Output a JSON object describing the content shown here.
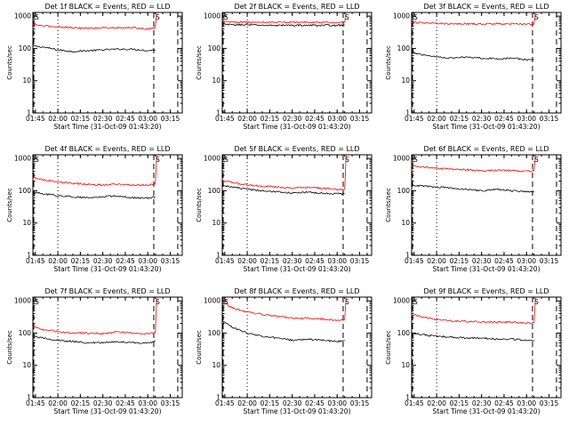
{
  "chart_data": [
    {
      "type": "line",
      "title": "Det 1f BLACK = Events, RED = LLD",
      "xlabel": "Start Time (31-Oct-09 01:43:20)",
      "ylabel": "Counts/sec",
      "x_ticks": [
        "01:45",
        "02:00",
        "02:15",
        "02:30",
        "02:45",
        "03:00",
        "03:15"
      ],
      "y_ticks": [
        "1",
        "10",
        "100",
        "1000"
      ],
      "y_scale": "log",
      "ylim": [
        1,
        1300
      ],
      "series": [
        {
          "color": "#000000",
          "x": [
            "01:43",
            "01:50",
            "02:00",
            "02:10",
            "02:20",
            "02:30",
            "02:40",
            "02:50",
            "03:00",
            "03:05"
          ],
          "values": [
            120,
            110,
            90,
            80,
            85,
            90,
            95,
            95,
            85,
            90
          ]
        },
        {
          "color": "#ff0000",
          "x": [
            "01:43",
            "01:50",
            "02:00",
            "02:10",
            "02:20",
            "02:30",
            "02:40",
            "02:50",
            "03:00",
            "03:05",
            "03:06"
          ],
          "values": [
            560,
            500,
            470,
            440,
            420,
            440,
            430,
            440,
            400,
            450,
            1300
          ]
        }
      ]
    },
    {
      "type": "line",
      "title": "Det 2f BLACK = Events, RED = LLD",
      "xlabel": "Start Time (31-Oct-09 01:43:20)",
      "ylabel": "Counts/sec",
      "x_ticks": [
        "01:45",
        "02:00",
        "02:15",
        "02:30",
        "02:45",
        "03:00",
        "03:15"
      ],
      "y_ticks": [
        "1",
        "10",
        "100",
        "1000"
      ],
      "y_scale": "log",
      "ylim": [
        1,
        1300
      ],
      "series": [
        {
          "color": "#000000",
          "x": [
            "01:43",
            "01:50",
            "02:00",
            "02:10",
            "02:20",
            "02:30",
            "02:40",
            "02:50",
            "03:00",
            "03:05"
          ],
          "values": [
            560,
            540,
            540,
            520,
            520,
            520,
            520,
            520,
            520,
            520
          ]
        },
        {
          "color": "#ff0000",
          "x": [
            "01:43",
            "01:50",
            "02:00",
            "02:10",
            "02:20",
            "02:30",
            "02:40",
            "02:50",
            "03:00",
            "03:05",
            "03:06"
          ],
          "values": [
            680,
            660,
            650,
            640,
            650,
            640,
            650,
            640,
            640,
            650,
            1300
          ]
        }
      ]
    },
    {
      "type": "line",
      "title": "Det 3f BLACK = Events, RED = LLD",
      "xlabel": "Start Time (31-Oct-09 01:43:20)",
      "ylabel": "Counts/sec",
      "x_ticks": [
        "01:45",
        "02:00",
        "02:15",
        "02:30",
        "02:45",
        "03:00",
        "03:15"
      ],
      "y_ticks": [
        "1",
        "10",
        "100",
        "1000"
      ],
      "y_scale": "log",
      "ylim": [
        1,
        1300
      ],
      "series": [
        {
          "color": "#000000",
          "x": [
            "01:43",
            "01:50",
            "02:00",
            "02:10",
            "02:20",
            "02:30",
            "02:40",
            "02:50",
            "03:00",
            "03:05"
          ],
          "values": [
            75,
            65,
            55,
            50,
            55,
            50,
            48,
            50,
            45,
            45
          ]
        },
        {
          "color": "#ff0000",
          "x": [
            "01:43",
            "01:50",
            "02:00",
            "02:10",
            "02:20",
            "02:30",
            "02:40",
            "02:50",
            "03:00",
            "03:05",
            "03:06"
          ],
          "values": [
            650,
            620,
            600,
            580,
            580,
            570,
            580,
            580,
            560,
            570,
            1300
          ]
        }
      ]
    },
    {
      "type": "line",
      "title": "Det 4f BLACK = Events, RED = LLD",
      "xlabel": "Start Time (31-Oct-09 01:43:20)",
      "ylabel": "Counts/sec",
      "x_ticks": [
        "01:45",
        "02:00",
        "02:15",
        "02:30",
        "02:45",
        "03:00",
        "03:15"
      ],
      "y_ticks": [
        "1",
        "10",
        "100",
        "1000"
      ],
      "y_scale": "log",
      "ylim": [
        1,
        1300
      ],
      "series": [
        {
          "color": "#000000",
          "x": [
            "01:43",
            "01:50",
            "02:00",
            "02:10",
            "02:20",
            "02:30",
            "02:40",
            "02:50",
            "03:00",
            "03:05"
          ],
          "values": [
            90,
            80,
            70,
            65,
            60,
            65,
            70,
            60,
            60,
            65
          ]
        },
        {
          "color": "#ff0000",
          "x": [
            "01:43",
            "01:50",
            "02:00",
            "02:10",
            "02:20",
            "02:30",
            "02:40",
            "02:50",
            "03:00",
            "03:05",
            "03:06"
          ],
          "values": [
            260,
            220,
            190,
            170,
            160,
            150,
            160,
            150,
            150,
            160,
            1300
          ]
        }
      ]
    },
    {
      "type": "line",
      "title": "Det 5f BLACK = Events, RED = LLD",
      "xlabel": "Start Time (31-Oct-09 01:43:20)",
      "ylabel": "Counts/sec",
      "x_ticks": [
        "01:45",
        "02:00",
        "02:15",
        "02:30",
        "02:45",
        "03:00",
        "03:15"
      ],
      "y_ticks": [
        "1",
        "10",
        "100",
        "1000"
      ],
      "y_scale": "log",
      "ylim": [
        1,
        1300
      ],
      "series": [
        {
          "color": "#000000",
          "x": [
            "01:43",
            "01:50",
            "02:00",
            "02:10",
            "02:20",
            "02:30",
            "02:40",
            "02:50",
            "03:00",
            "03:05"
          ],
          "values": [
            150,
            130,
            110,
            100,
            95,
            85,
            90,
            85,
            80,
            80
          ]
        },
        {
          "color": "#ff0000",
          "x": [
            "01:43",
            "01:50",
            "02:00",
            "02:10",
            "02:20",
            "02:30",
            "02:40",
            "02:50",
            "03:00",
            "03:05",
            "03:06"
          ],
          "values": [
            210,
            180,
            150,
            140,
            130,
            120,
            130,
            120,
            110,
            110,
            1300
          ]
        }
      ]
    },
    {
      "type": "line",
      "title": "Det 6f BLACK = Events, RED = LLD",
      "xlabel": "Start Time (31-Oct-09 01:43:20)",
      "ylabel": "Counts/sec",
      "x_ticks": [
        "01:45",
        "02:00",
        "02:15",
        "02:30",
        "02:45",
        "03:00",
        "03:15"
      ],
      "y_ticks": [
        "1",
        "10",
        "100",
        "1000"
      ],
      "y_scale": "log",
      "ylim": [
        1,
        1300
      ],
      "series": [
        {
          "color": "#000000",
          "x": [
            "01:43",
            "01:50",
            "02:00",
            "02:10",
            "02:20",
            "02:30",
            "02:40",
            "02:50",
            "03:00",
            "03:05"
          ],
          "values": [
            150,
            140,
            130,
            120,
            110,
            100,
            110,
            100,
            95,
            95
          ]
        },
        {
          "color": "#ff0000",
          "x": [
            "01:43",
            "01:50",
            "02:00",
            "02:10",
            "02:20",
            "02:30",
            "02:40",
            "02:50",
            "03:00",
            "03:05",
            "03:06"
          ],
          "values": [
            600,
            550,
            500,
            460,
            450,
            420,
            430,
            420,
            400,
            420,
            1300
          ]
        }
      ]
    },
    {
      "type": "line",
      "title": "Det 7f BLACK = Events, RED = LLD",
      "xlabel": "Start Time (31-Oct-09 01:43:20)",
      "ylabel": "Counts/sec",
      "x_ticks": [
        "01:45",
        "02:00",
        "02:15",
        "02:30",
        "02:45",
        "03:00",
        "03:15"
      ],
      "y_ticks": [
        "1",
        "10",
        "100",
        "1000"
      ],
      "y_scale": "log",
      "ylim": [
        1,
        1300
      ],
      "series": [
        {
          "color": "#000000",
          "x": [
            "01:43",
            "01:50",
            "02:00",
            "02:10",
            "02:20",
            "02:30",
            "02:40",
            "02:50",
            "03:00",
            "03:05"
          ],
          "values": [
            80,
            70,
            60,
            55,
            50,
            50,
            55,
            50,
            50,
            55
          ]
        },
        {
          "color": "#ff0000",
          "x": [
            "01:43",
            "01:50",
            "02:00",
            "02:10",
            "02:20",
            "02:30",
            "02:40",
            "02:50",
            "03:00",
            "03:05",
            "03:06"
          ],
          "values": [
            160,
            130,
            110,
            100,
            100,
            95,
            110,
            100,
            95,
            105,
            1300
          ]
        }
      ]
    },
    {
      "type": "line",
      "title": "Det 8f BLACK = Events, RED = LLD",
      "xlabel": "Start Time (31-Oct-09 01:43:20)",
      "ylabel": "Counts/sec",
      "x_ticks": [
        "01:45",
        "02:00",
        "02:15",
        "02:30",
        "02:45",
        "03:00",
        "03:15"
      ],
      "y_ticks": [
        "1",
        "10",
        "100",
        "1000"
      ],
      "y_scale": "log",
      "ylim": [
        1,
        1300
      ],
      "series": [
        {
          "color": "#000000",
          "x": [
            "01:43",
            "01:50",
            "02:00",
            "02:10",
            "02:20",
            "02:30",
            "02:40",
            "02:50",
            "03:00",
            "03:05"
          ],
          "values": [
            250,
            150,
            100,
            80,
            70,
            60,
            65,
            60,
            55,
            60
          ]
        },
        {
          "color": "#ff0000",
          "x": [
            "01:43",
            "01:50",
            "02:00",
            "02:10",
            "02:20",
            "02:30",
            "02:40",
            "02:50",
            "03:00",
            "03:05",
            "03:06"
          ],
          "values": [
            1000,
            600,
            450,
            380,
            330,
            290,
            290,
            270,
            250,
            260,
            1300
          ]
        }
      ]
    },
    {
      "type": "line",
      "title": "Det 9f BLACK = Events, RED = LLD",
      "xlabel": "Start Time (31-Oct-09 01:43:20)",
      "ylabel": "Counts/sec",
      "x_ticks": [
        "01:45",
        "02:00",
        "02:15",
        "02:30",
        "02:45",
        "03:00",
        "03:15"
      ],
      "y_ticks": [
        "1",
        "10",
        "100",
        "1000"
      ],
      "y_scale": "log",
      "ylim": [
        1,
        1300
      ],
      "series": [
        {
          "color": "#000000",
          "x": [
            "01:43",
            "01:50",
            "02:00",
            "02:10",
            "02:20",
            "02:30",
            "02:40",
            "02:50",
            "03:00",
            "03:05"
          ],
          "values": [
            100,
            90,
            80,
            75,
            70,
            70,
            65,
            65,
            60,
            60
          ]
        },
        {
          "color": "#ff0000",
          "x": [
            "01:43",
            "01:50",
            "02:00",
            "02:10",
            "02:20",
            "02:30",
            "02:40",
            "02:50",
            "03:00",
            "03:05",
            "03:06"
          ],
          "values": [
            380,
            320,
            260,
            240,
            230,
            220,
            220,
            220,
            200,
            210,
            1300
          ]
        }
      ]
    }
  ]
}
